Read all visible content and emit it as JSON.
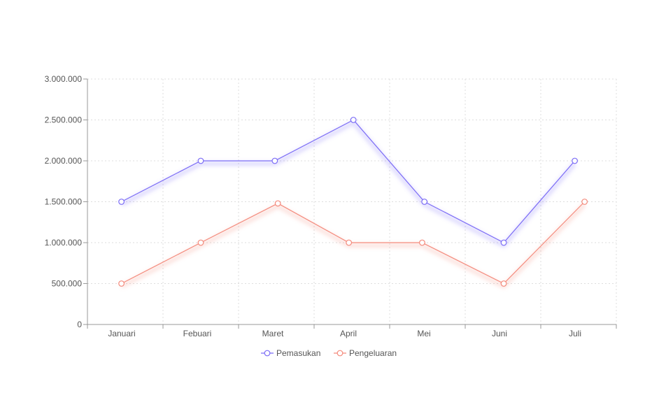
{
  "chart_data": {
    "type": "line",
    "categories": [
      "Januari",
      "Febuari",
      "Maret",
      "April",
      "Mei",
      "Juni",
      "Juli"
    ],
    "series": [
      {
        "name": "Pemasukan",
        "color": "#7b6cf6",
        "values": [
          1500000,
          2000000,
          2000000,
          2500000,
          1500000,
          1000000,
          2000000
        ]
      },
      {
        "name": "Pengeluaran",
        "color": "#f48a7c",
        "values": [
          500000,
          1000000,
          1480000,
          1000000,
          1000000,
          500000,
          1500000
        ]
      }
    ],
    "ylim": [
      0,
      3000000
    ],
    "yticks": [
      0,
      500000,
      1000000,
      1500000,
      2000000,
      2500000,
      3000000
    ],
    "ytick_labels": [
      "0",
      "500.000",
      "1.000.000",
      "1.500.000",
      "2.000.000",
      "2.500.000",
      "3.000.000"
    ],
    "grid": true,
    "legend_position": "bottom"
  }
}
